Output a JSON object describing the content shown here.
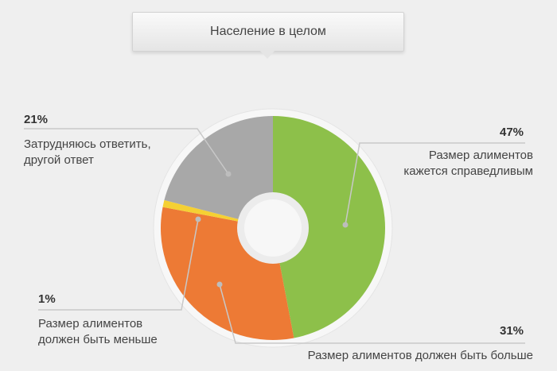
{
  "chart_data": {
    "type": "pie",
    "title": "Население в целом",
    "slices": [
      {
        "label": "Размер алиментов кажется справедливым",
        "label_lines": [
          "Размер алиментов",
          "кажется справедливым"
        ],
        "value": 47,
        "value_label": "47%",
        "color": "#8dc04a"
      },
      {
        "label": "Размер алиментов должен быть больше",
        "label_lines": [
          "Размер алиментов должен быть больше"
        ],
        "value": 31,
        "value_label": "31%",
        "color": "#ed7a35"
      },
      {
        "label": "Размер алиментов должен быть меньше",
        "label_lines": [
          "Размер алиментов",
          "должен быть меньше"
        ],
        "value": 1,
        "value_label": "1%",
        "color": "#f5d033"
      },
      {
        "label": "Затрудняюсь ответить, другой ответ",
        "label_lines": [
          "Затрудняюсь ответить,",
          "другой ответ"
        ],
        "value": 21,
        "value_label": "21%",
        "color": "#a8a8a8"
      }
    ]
  }
}
